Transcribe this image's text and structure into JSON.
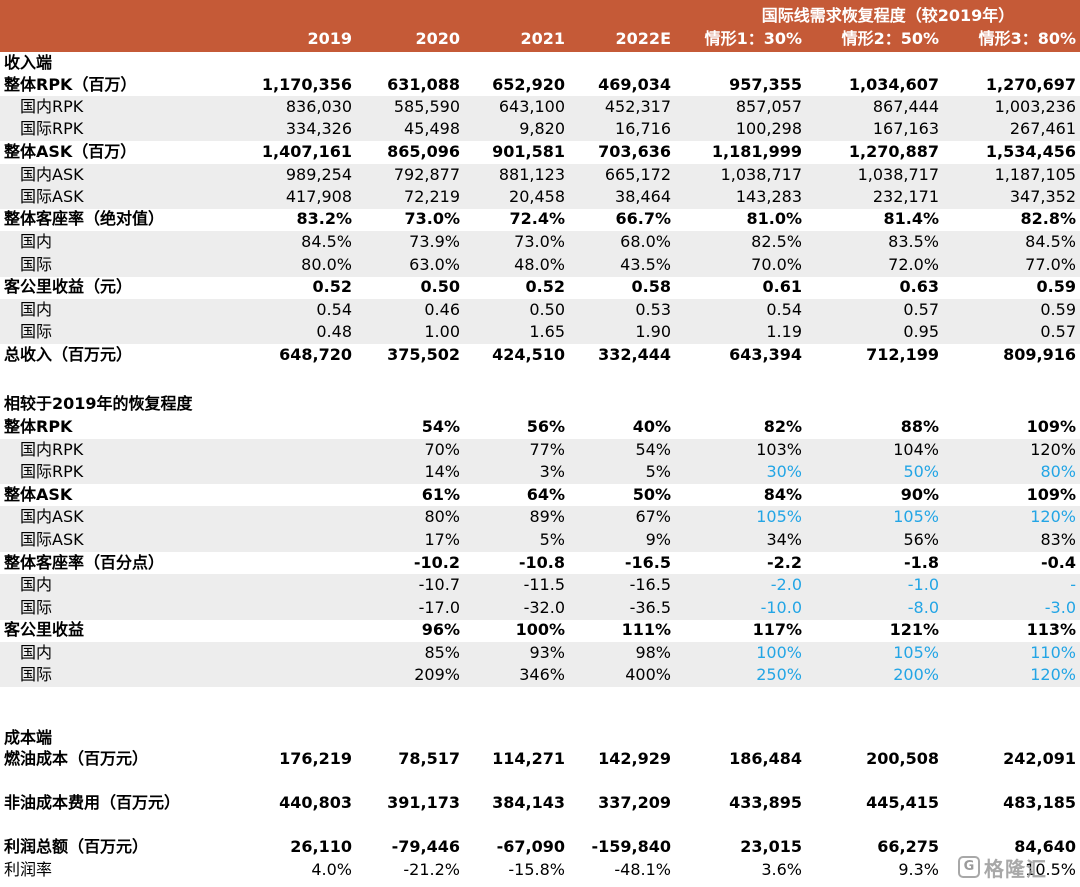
{
  "header": {
    "super_label": "国际线需求恢复程度（较2019年）",
    "columns": [
      "2019",
      "2020",
      "2021",
      "2022E",
      "情形1：30%",
      "情形2：50%",
      "情形3：80%"
    ]
  },
  "colors": {
    "header_bg": "#C55A37",
    "header_text": "#FFFFFF",
    "row_shade": "#EDEDED",
    "scenario_input_blue": "#23A5E5"
  },
  "rows": [
    {
      "label": "收入端",
      "style": "section",
      "cells": []
    },
    {
      "label": "整体RPK（百万）",
      "style": "bold",
      "cells": [
        "1,170,356",
        "631,088",
        "652,920",
        "469,034",
        "957,355",
        "1,034,607",
        "1,270,697"
      ]
    },
    {
      "label": "国内RPK",
      "style": "sub",
      "cells": [
        "836,030",
        "585,590",
        "643,100",
        "452,317",
        "857,057",
        "867,444",
        "1,003,236"
      ]
    },
    {
      "label": "国际RPK",
      "style": "sub",
      "cells": [
        "334,326",
        "45,498",
        "9,820",
        "16,716",
        "100,298",
        "167,163",
        "267,461"
      ]
    },
    {
      "label": "整体ASK（百万）",
      "style": "bold",
      "cells": [
        "1,407,161",
        "865,096",
        "901,581",
        "703,636",
        "1,181,999",
        "1,270,887",
        "1,534,456"
      ]
    },
    {
      "label": "国内ASK",
      "style": "sub",
      "cells": [
        "989,254",
        "792,877",
        "881,123",
        "665,172",
        "1,038,717",
        "1,038,717",
        "1,187,105"
      ]
    },
    {
      "label": "国际ASK",
      "style": "sub",
      "cells": [
        "417,908",
        "72,219",
        "20,458",
        "38,464",
        "143,283",
        "232,171",
        "347,352"
      ]
    },
    {
      "label": "整体客座率（绝对值）",
      "style": "bold",
      "cells": [
        "83.2%",
        "73.0%",
        "72.4%",
        "66.7%",
        "81.0%",
        "81.4%",
        "82.8%"
      ]
    },
    {
      "label": "国内",
      "style": "sub",
      "cells": [
        "84.5%",
        "73.9%",
        "73.0%",
        "68.0%",
        "82.5%",
        "83.5%",
        "84.5%"
      ]
    },
    {
      "label": "国际",
      "style": "sub",
      "cells": [
        "80.0%",
        "63.0%",
        "48.0%",
        "43.5%",
        "70.0%",
        "72.0%",
        "77.0%"
      ]
    },
    {
      "label": "客公里收益（元）",
      "style": "bold",
      "cells": [
        "0.52",
        "0.50",
        "0.52",
        "0.58",
        "0.61",
        "0.63",
        "0.59"
      ]
    },
    {
      "label": "国内",
      "style": "sub",
      "cells": [
        "0.54",
        "0.46",
        "0.50",
        "0.53",
        "0.54",
        "0.57",
        "0.59"
      ]
    },
    {
      "label": "国际",
      "style": "sub",
      "cells": [
        "0.48",
        "1.00",
        "1.65",
        "1.90",
        "1.19",
        "0.95",
        "0.57"
      ]
    },
    {
      "label": "总收入（百万元）",
      "style": "bold",
      "cells": [
        "648,720",
        "375,502",
        "424,510",
        "332,444",
        "643,394",
        "712,199",
        "809,916"
      ]
    },
    {
      "label": "相较于2019年的恢复程度",
      "style": "section",
      "cells": []
    },
    {
      "label": "整体RPK",
      "style": "bold",
      "cells": [
        "",
        "54%",
        "56%",
        "40%",
        "82%",
        "88%",
        "109%"
      ]
    },
    {
      "label": "国内RPK",
      "style": "sub",
      "cells": [
        "",
        "70%",
        "77%",
        "54%",
        "103%",
        "104%",
        "120%"
      ]
    },
    {
      "label": "国际RPK",
      "style": "sub",
      "blue_from": 4,
      "cells": [
        "",
        "14%",
        "3%",
        "5%",
        "30%",
        "50%",
        "80%"
      ]
    },
    {
      "label": "整体ASK",
      "style": "bold",
      "cells": [
        "",
        "61%",
        "64%",
        "50%",
        "84%",
        "90%",
        "109%"
      ]
    },
    {
      "label": "国内ASK",
      "style": "sub",
      "blue_from": 4,
      "cells": [
        "",
        "80%",
        "89%",
        "67%",
        "105%",
        "105%",
        "120%"
      ]
    },
    {
      "label": "国际ASK",
      "style": "sub",
      "cells": [
        "",
        "17%",
        "5%",
        "9%",
        "34%",
        "56%",
        "83%"
      ]
    },
    {
      "label": "整体客座率（百分点）",
      "style": "bold",
      "cells": [
        "",
        "-10.2",
        "-10.8",
        "-16.5",
        "-2.2",
        "-1.8",
        "-0.4"
      ]
    },
    {
      "label": "国内",
      "style": "sub",
      "blue_from": 4,
      "cells": [
        "",
        "-10.7",
        "-11.5",
        "-16.5",
        "-2.0",
        "-1.0",
        "-"
      ]
    },
    {
      "label": "国际",
      "style": "sub",
      "blue_from": 4,
      "cells": [
        "",
        "-17.0",
        "-32.0",
        "-36.5",
        "-10.0",
        "-8.0",
        "-3.0"
      ]
    },
    {
      "label": "客公里收益",
      "style": "bold",
      "cells": [
        "",
        "96%",
        "100%",
        "111%",
        "117%",
        "121%",
        "113%"
      ]
    },
    {
      "label": "国内",
      "style": "sub",
      "blue_from": 4,
      "cells": [
        "",
        "85%",
        "93%",
        "98%",
        "100%",
        "105%",
        "110%"
      ]
    },
    {
      "label": "国际",
      "style": "sub",
      "blue_from": 4,
      "cells": [
        "",
        "209%",
        "346%",
        "400%",
        "250%",
        "200%",
        "120%"
      ]
    },
    {
      "label": "成本端",
      "style": "section",
      "cells": []
    },
    {
      "label": "燃油成本（百万元）",
      "style": "bold",
      "cells": [
        "176,219",
        "78,517",
        "114,271",
        "142,929",
        "186,484",
        "200,508",
        "242,091"
      ]
    },
    {
      "label": "非油成本费用（百万元）",
      "style": "bold",
      "cells": [
        "440,803",
        "391,173",
        "384,143",
        "337,209",
        "433,895",
        "445,415",
        "483,185"
      ]
    },
    {
      "label": "利润总额（百万元）",
      "style": "bold",
      "cells": [
        "26,110",
        "-79,446",
        "-67,090",
        "-159,840",
        "23,015",
        "66,275",
        "84,640"
      ]
    },
    {
      "label": "利润率",
      "style": "plain",
      "cells": [
        "4.0%",
        "-21.2%",
        "-15.8%",
        "-48.1%",
        "3.6%",
        "9.3%",
        "10.5%"
      ]
    }
  ],
  "watermark": {
    "logo_glyph": "G",
    "text": "格隆汇"
  }
}
